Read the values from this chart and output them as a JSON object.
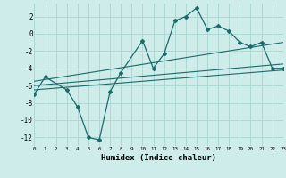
{
  "title": "",
  "xlabel": "Humidex (Indice chaleur)",
  "background_color": "#ceecea",
  "grid_color": "#aed8d4",
  "line_color": "#1a6b6b",
  "xlim": [
    0,
    23
  ],
  "ylim": [
    -13,
    3.5
  ],
  "yticks": [
    2,
    0,
    -2,
    -4,
    -6,
    -8,
    -10,
    -12
  ],
  "xticks": [
    0,
    1,
    2,
    3,
    4,
    5,
    6,
    7,
    8,
    9,
    10,
    11,
    12,
    13,
    14,
    15,
    16,
    17,
    18,
    19,
    20,
    21,
    22,
    23
  ],
  "curve1_x": [
    0,
    1,
    3,
    4,
    5,
    6,
    7,
    8,
    10,
    11,
    12,
    13,
    14,
    15,
    16,
    17,
    18,
    19,
    20,
    21,
    22,
    23
  ],
  "curve1_y": [
    -7,
    -5,
    -6.5,
    -8.5,
    -12,
    -12.3,
    -6.7,
    -4.5,
    -0.8,
    -4.0,
    -2.3,
    1.5,
    2.0,
    3.0,
    0.5,
    0.9,
    0.3,
    -1.0,
    -1.5,
    -1.0,
    -4.0,
    -4.0
  ],
  "line1_x": [
    0,
    23
  ],
  "line1_y": [
    -6.5,
    -4.2
  ],
  "line2_x": [
    0,
    23
  ],
  "line2_y": [
    -6.0,
    -3.5
  ],
  "line3_x": [
    0,
    23
  ],
  "line3_y": [
    -5.5,
    -1.0
  ]
}
